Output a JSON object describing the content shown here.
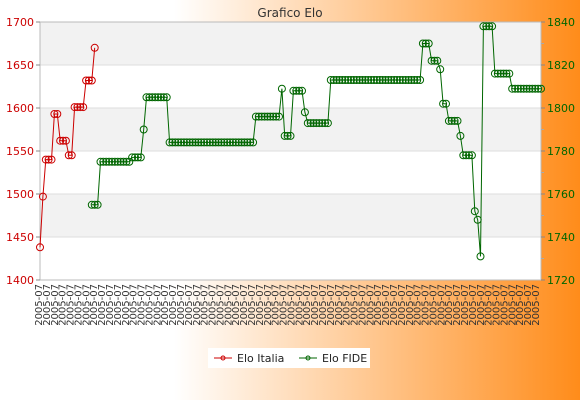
{
  "chart_data": {
    "type": "line",
    "title": "Grafico Elo",
    "background_gradient": [
      "#ffffff",
      "#ff8c1a"
    ],
    "plot_bands": [
      "#f2f2f2",
      "#ffffff"
    ],
    "y_left": {
      "range": [
        1400,
        1700
      ],
      "ticks": [
        "1400",
        "1450",
        "1500",
        "1550",
        "1600",
        "1650",
        "1700"
      ],
      "color": "#cc0000"
    },
    "y_right": {
      "range": [
        1720,
        1840
      ],
      "ticks": [
        "1720",
        "1740",
        "1760",
        "1780",
        "1800",
        "1820",
        "1840"
      ],
      "color": "#006600"
    },
    "x_tick_label": "2005-07",
    "x_tick_count": 64,
    "legend": {
      "placement": "bottom"
    },
    "series": [
      {
        "name": "Elo Italia",
        "axis": "left",
        "color": "#cc0000",
        "values": [
          1438,
          1497,
          1540,
          1540,
          1540,
          1593,
          1593,
          1562,
          1562,
          1562,
          1545,
          1545,
          1601,
          1601,
          1601,
          1601,
          1632,
          1632,
          1632,
          1670
        ]
      },
      {
        "name": "Elo FIDE",
        "axis": "right",
        "color": "#006600",
        "start_index": 18,
        "values": [
          1755,
          1755,
          1755,
          1775,
          1775,
          1775,
          1775,
          1775,
          1775,
          1775,
          1775,
          1775,
          1775,
          1775,
          1777,
          1777,
          1777,
          1777,
          1790,
          1805,
          1805,
          1805,
          1805,
          1805,
          1805,
          1805,
          1805,
          1784,
          1784,
          1784,
          1784,
          1784,
          1784,
          1784,
          1784,
          1784,
          1784,
          1784,
          1784,
          1784,
          1784,
          1784,
          1784,
          1784,
          1784,
          1784,
          1784,
          1784,
          1784,
          1784,
          1784,
          1784,
          1784,
          1784,
          1784,
          1784,
          1784,
          1796,
          1796,
          1796,
          1796,
          1796,
          1796,
          1796,
          1796,
          1796,
          1809,
          1787,
          1787,
          1787,
          1808,
          1808,
          1808,
          1808,
          1798,
          1793,
          1793,
          1793,
          1793,
          1793,
          1793,
          1793,
          1793,
          1813,
          1813,
          1813,
          1813,
          1813,
          1813,
          1813,
          1813,
          1813,
          1813,
          1813,
          1813,
          1813,
          1813,
          1813,
          1813,
          1813,
          1813,
          1813,
          1813,
          1813,
          1813,
          1813,
          1813,
          1813,
          1813,
          1813,
          1813,
          1813,
          1813,
          1813,
          1813,
          1830,
          1830,
          1830,
          1822,
          1822,
          1822,
          1818,
          1802,
          1802,
          1794,
          1794,
          1794,
          1794,
          1787,
          1778,
          1778,
          1778,
          1778,
          1752,
          1748,
          1731,
          1838,
          1838,
          1838,
          1838,
          1816,
          1816,
          1816,
          1816,
          1816,
          1816,
          1809,
          1809,
          1809,
          1809,
          1809,
          1809,
          1809,
          1809,
          1809,
          1809,
          1809
        ]
      }
    ]
  }
}
